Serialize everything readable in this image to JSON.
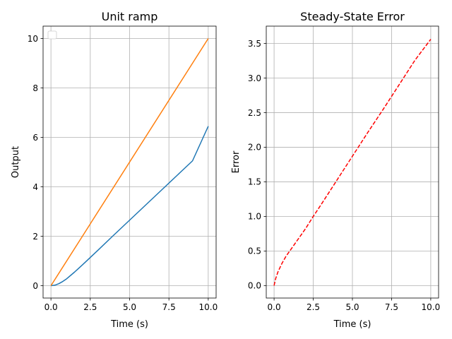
{
  "chart_data": [
    {
      "type": "line",
      "title": "Unit ramp",
      "xlabel": "Time (s)",
      "ylabel": "Output",
      "xlim": [
        -0.5,
        10.5
      ],
      "ylim": [
        -0.5,
        10.5
      ],
      "xticks": [
        0.0,
        2.5,
        5.0,
        7.5,
        10.0
      ],
      "xtick_labels": [
        "0.0",
        "2.5",
        "5.0",
        "7.5",
        "10.0"
      ],
      "yticks": [
        0,
        2,
        4,
        6,
        8,
        10
      ],
      "ytick_labels": [
        "0",
        "2",
        "4",
        "6",
        "8",
        "10"
      ],
      "grid": true,
      "legend": {
        "placement": "top-left",
        "entries": []
      },
      "series": [
        {
          "color": "#1f77b4",
          "style": "solid",
          "x": [
            0,
            0.25,
            0.5,
            0.75,
            1.0,
            1.5,
            2.0,
            2.5,
            3.0,
            4.0,
            5.0,
            6.0,
            7.0,
            8.0,
            9.0,
            10.0
          ],
          "y": [
            0,
            0.02,
            0.08,
            0.17,
            0.28,
            0.55,
            0.84,
            1.14,
            1.44,
            2.05,
            2.65,
            3.25,
            3.85,
            4.45,
            5.05,
            6.45
          ]
        },
        {
          "color": "#ff7f0e",
          "style": "solid",
          "x": [
            0,
            10.0
          ],
          "y": [
            0,
            10.0
          ]
        }
      ]
    },
    {
      "type": "line",
      "title": "Steady-State Error",
      "xlabel": "Time (s)",
      "ylabel": "Error",
      "xlim": [
        -0.5,
        10.5
      ],
      "ylim": [
        -0.18,
        3.75
      ],
      "xticks": [
        0.0,
        2.5,
        5.0,
        7.5,
        10.0
      ],
      "xtick_labels": [
        "0.0",
        "2.5",
        "5.0",
        "7.5",
        "10.0"
      ],
      "yticks": [
        0.0,
        0.5,
        1.0,
        1.5,
        2.0,
        2.5,
        3.0,
        3.5
      ],
      "ytick_labels": [
        "0.0",
        "0.5",
        "1.0",
        "1.5",
        "2.0",
        "2.5",
        "3.0",
        "3.5"
      ],
      "grid": true,
      "series": [
        {
          "color": "#ff0000",
          "style": "dashed",
          "x": [
            0,
            0.1,
            0.25,
            0.5,
            0.75,
            1.0,
            1.5,
            2.0,
            2.5,
            3.0,
            4.0,
            5.0,
            6.0,
            7.0,
            8.0,
            9.0,
            10.0
          ],
          "y": [
            0,
            0.1,
            0.2,
            0.32,
            0.42,
            0.5,
            0.66,
            0.82,
            1.0,
            1.17,
            1.52,
            1.87,
            2.22,
            2.56,
            2.91,
            3.26,
            3.56
          ]
        }
      ]
    }
  ]
}
